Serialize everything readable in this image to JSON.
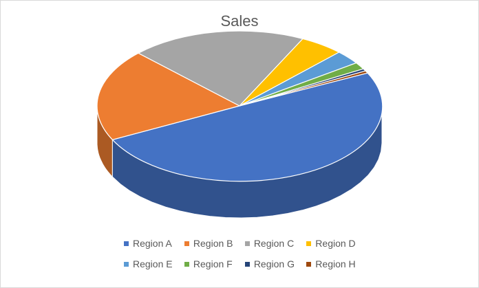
{
  "chart_data": {
    "type": "pie",
    "style": "3d-exploded-none",
    "title": "Sales",
    "categories": [
      "Region A",
      "Region B",
      "Region C",
      "Region D",
      "Region E",
      "Region F",
      "Region G",
      "Region H"
    ],
    "values": [
      50,
      20,
      20,
      5,
      3,
      1.5,
      0.5,
      0.5
    ],
    "colors": [
      "#4472C4",
      "#ED7D31",
      "#A5A5A5",
      "#FFC000",
      "#5B9BD5",
      "#70AD47",
      "#264478",
      "#9E480E"
    ],
    "legend": "bottom"
  }
}
